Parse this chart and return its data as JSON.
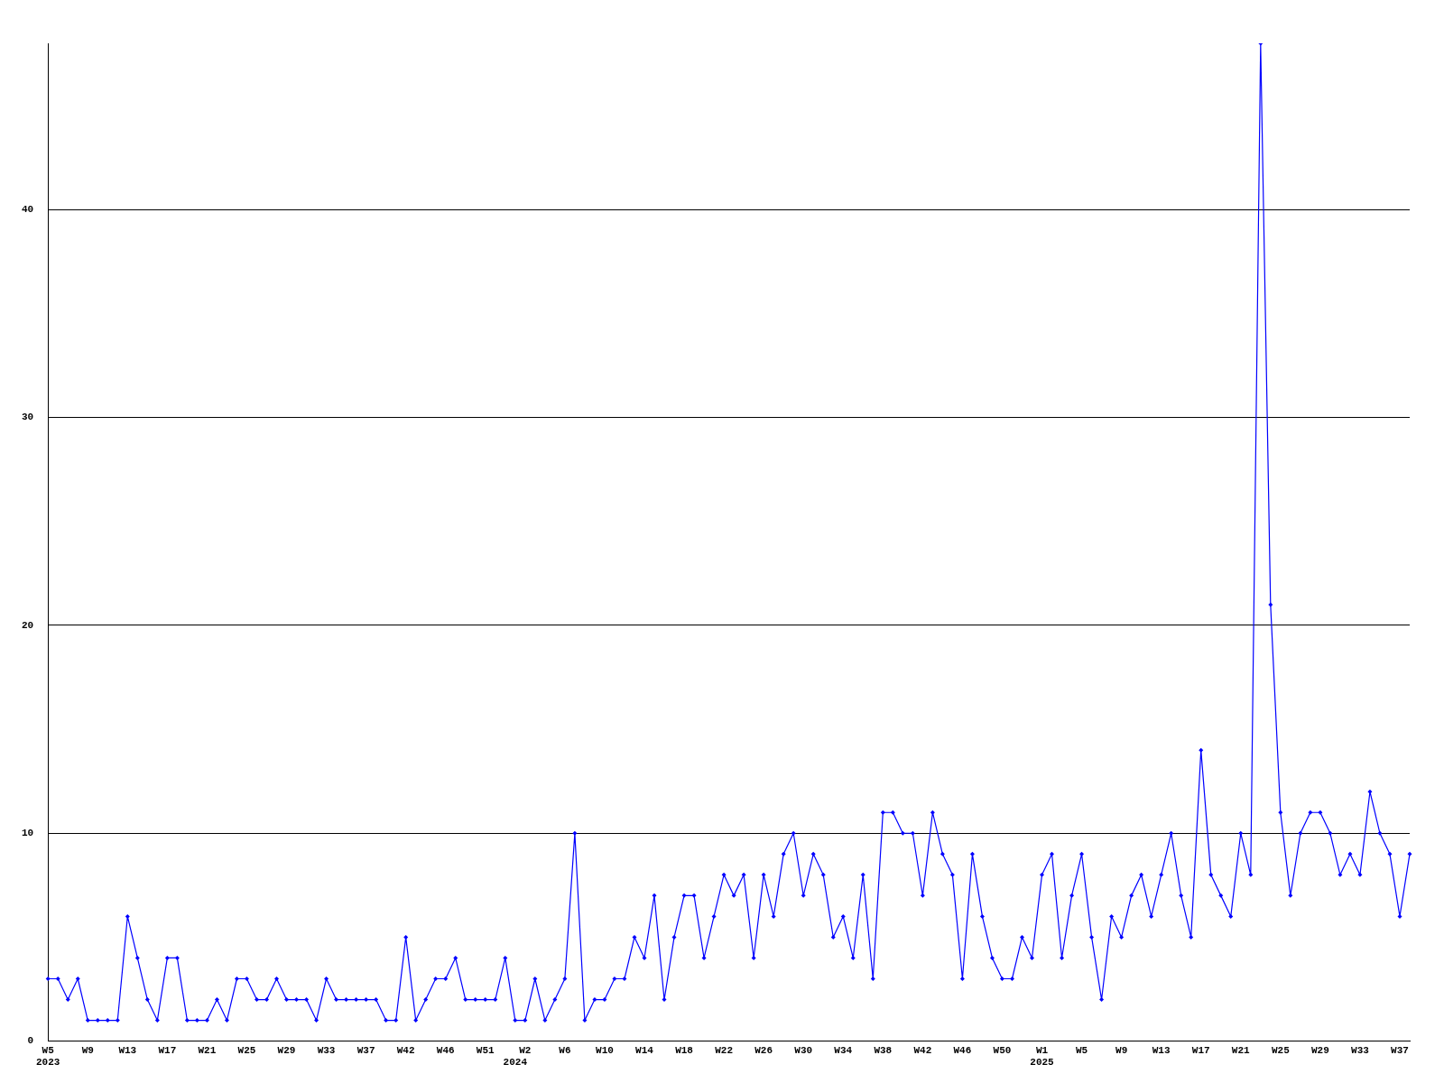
{
  "chart_data": {
    "type": "line",
    "categories": [
      "W5\n2023",
      null,
      null,
      null,
      "W9",
      null,
      null,
      null,
      "W13",
      null,
      null,
      null,
      "W17",
      null,
      null,
      null,
      "W21",
      null,
      null,
      null,
      "W25",
      null,
      null,
      null,
      "W29",
      null,
      null,
      null,
      "W33",
      null,
      null,
      null,
      "W37",
      null,
      null,
      null,
      "W42",
      null,
      null,
      null,
      "W46",
      null,
      null,
      null,
      "W51",
      null,
      null,
      "\n2024",
      "W2",
      null,
      null,
      null,
      "W6",
      null,
      null,
      null,
      "W10",
      null,
      null,
      null,
      "W14",
      null,
      null,
      null,
      "W18",
      null,
      null,
      null,
      "W22",
      null,
      null,
      null,
      "W26",
      null,
      null,
      null,
      "W30",
      null,
      null,
      null,
      "W34",
      null,
      null,
      null,
      "W38",
      null,
      null,
      null,
      "W42",
      null,
      null,
      null,
      "W46",
      null,
      null,
      null,
      "W50",
      null,
      null,
      null,
      "W1\n2025",
      null,
      null,
      null,
      "W5",
      null,
      null,
      null,
      "W9",
      null,
      null,
      null,
      "W13",
      null,
      null,
      null,
      "W17",
      null,
      null,
      null,
      "W21",
      null,
      null,
      null,
      "W25",
      null,
      null,
      null,
      "W29",
      null,
      null,
      null,
      "W33",
      null,
      null,
      null,
      "W37",
      null
    ],
    "series": [
      {
        "color": "#0000ff",
        "values": [
          3,
          3,
          2,
          3,
          1,
          1,
          1,
          1,
          6,
          4,
          2,
          1,
          4,
          4,
          1,
          1,
          1,
          2,
          1,
          3,
          3,
          2,
          2,
          3,
          2,
          2,
          2,
          1,
          3,
          2,
          2,
          2,
          2,
          2,
          1,
          1,
          5,
          1,
          2,
          3,
          3,
          4,
          2,
          2,
          2,
          2,
          4,
          1,
          1,
          3,
          1,
          2,
          3,
          10,
          1,
          2,
          2,
          3,
          3,
          5,
          4,
          7,
          2,
          5,
          7,
          7,
          4,
          6,
          8,
          7,
          8,
          4,
          8,
          6,
          9,
          10,
          7,
          9,
          8,
          5,
          6,
          4,
          8,
          3,
          11,
          11,
          10,
          10,
          7,
          11,
          9,
          8,
          3,
          9,
          6,
          4,
          3,
          3,
          5,
          4,
          8,
          9,
          4,
          7,
          9,
          5,
          2,
          6,
          5,
          7,
          8,
          6,
          8,
          10,
          7,
          5,
          14,
          8,
          7,
          6,
          10,
          8,
          48,
          21,
          11,
          7,
          10,
          11,
          11,
          10,
          8,
          9,
          8,
          12,
          10,
          9,
          6,
          9
        ]
      }
    ],
    "ylim": [
      0,
      48
    ],
    "yticks": [
      0,
      10,
      20,
      30,
      40
    ],
    "grid": "y",
    "legend": false,
    "marker": "diamond",
    "line_style": "solid"
  }
}
